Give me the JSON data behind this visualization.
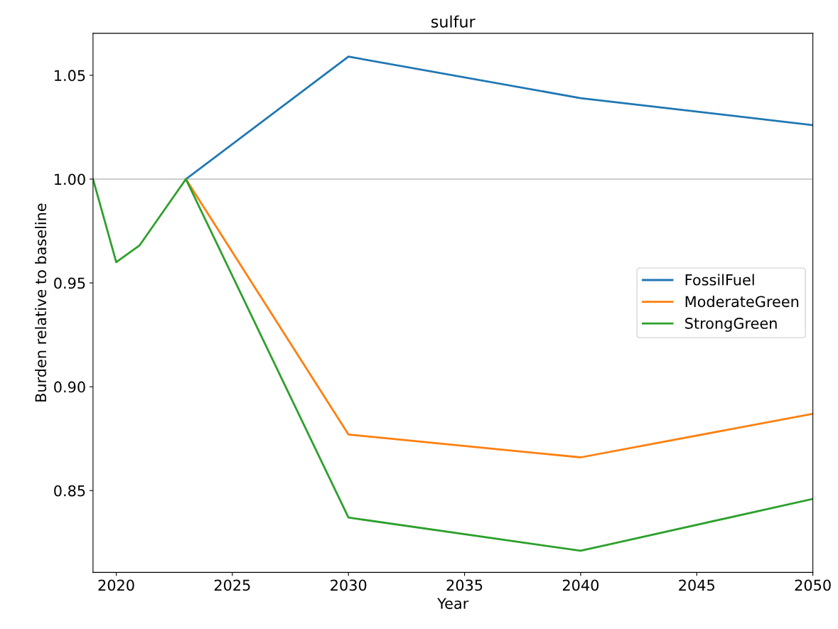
{
  "chart_data": {
    "type": "line",
    "title": "sulfur",
    "xlabel": "Year",
    "ylabel": "Burden relative to baseline",
    "x": [
      2019,
      2020,
      2021,
      2023,
      2030,
      2040,
      2050
    ],
    "series": [
      {
        "name": "FossilFuel",
        "color": "#1f77b4",
        "values": [
          null,
          null,
          null,
          1.0,
          1.059,
          1.039,
          1.026
        ]
      },
      {
        "name": "ModerateGreen",
        "color": "#ff7f0e",
        "values": [
          null,
          null,
          null,
          1.0,
          0.877,
          0.866,
          0.887
        ]
      },
      {
        "name": "StrongGreen",
        "color": "#2ca02c",
        "values": [
          1.0,
          0.96,
          0.968,
          1.0,
          0.837,
          0.821,
          0.846
        ]
      }
    ],
    "xlim": [
      2019,
      2050
    ],
    "ylim": [
      0.8106,
      1.0702
    ],
    "xticks": [
      2020,
      2025,
      2030,
      2035,
      2040,
      2045,
      2050
    ],
    "yticks": [
      {
        "value": 0.85,
        "label": "0.85"
      },
      {
        "value": 0.9,
        "label": "0.90"
      },
      {
        "value": 0.95,
        "label": "0.95"
      },
      {
        "value": 1.0,
        "label": "1.00"
      },
      {
        "value": 1.05,
        "label": "1.05"
      }
    ],
    "ref_lines": [
      {
        "axis": "y",
        "value": 1.0,
        "color": "#cccccc"
      }
    ],
    "legend": "center right",
    "grid": false
  }
}
